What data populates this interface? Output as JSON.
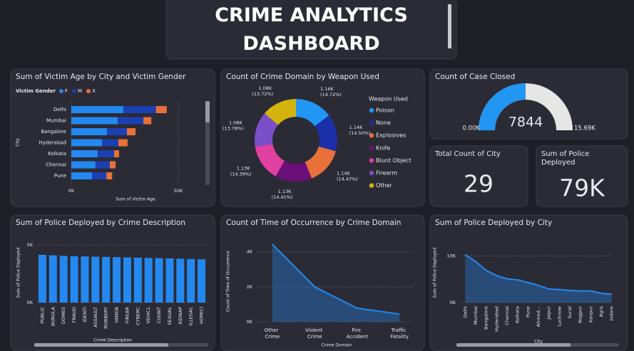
{
  "title": "CRIME ANALYTICS DASHBOARD",
  "chart_data": [
    {
      "type": "hbar_stacked",
      "title": "Sum of Victim Age by City and Victim Gender",
      "legend_title": "Victim Gender",
      "x_label": "Sum of Victim Age",
      "y_label": "City",
      "categories": [
        "Delhi",
        "Mumbai",
        "Bangalore",
        "Hyderabad",
        "Kolkata",
        "Chennai",
        "Pune"
      ],
      "series": [
        {
          "name": "F",
          "color": "#2389f0",
          "values": [
            24300,
            21700,
            16700,
            14300,
            12300,
            11300,
            9700
          ]
        },
        {
          "name": "M",
          "color": "#1c3fb2",
          "values": [
            15300,
            12000,
            9300,
            7700,
            7700,
            6700,
            6700
          ]
        },
        {
          "name": "X",
          "color": "#e8703a",
          "values": [
            5000,
            3700,
            4000,
            4300,
            2300,
            2700,
            2700
          ]
        }
      ],
      "xlim": [
        0,
        60000
      ],
      "xticks": [
        {
          "value": 0,
          "label": "0K"
        },
        {
          "value": 50000,
          "label": "50K"
        }
      ],
      "grid": true
    },
    {
      "type": "donut",
      "title": "Count of Crime Domain by Weapon Used",
      "legend_title": "Weapon Used",
      "categories": [
        "Poison",
        "None",
        "Explosives",
        "Knife",
        "Blunt Object",
        "Firearm",
        "Other"
      ],
      "values": [
        1160,
        1140,
        1140,
        1130,
        1130,
        1080,
        1080
      ],
      "value_labels": [
        "1.16K (14.72%)",
        "1.14K (14.50%)",
        "1.14K (14.47%)",
        "1.13K (14.41%)",
        "1.13K (14.39%)",
        "1.08K (13.78%)",
        "1.08K (13.72%)"
      ],
      "colors": [
        "#2196f3",
        "#1a2fa8",
        "#e8703a",
        "#6a0f7a",
        "#e040a0",
        "#7b4fc9",
        "#d4b40c"
      ]
    },
    {
      "type": "gauge",
      "title": "Count of Case Closed",
      "value": 7844,
      "min": {
        "value": 0,
        "label": "0.00K"
      },
      "max": {
        "value": 15690,
        "label": "15.69K"
      },
      "color": "#2196f3",
      "track_color": "#e6e6e6"
    },
    {
      "type": "bar",
      "title": "Sum of Police Deployed by Crime Description",
      "x_label": "Crime Description",
      "y_label": "Sum of Police Deployed",
      "categories": [
        "PUBLIC",
        "BURGLA",
        "DOMES",
        "FRAUD",
        "IDENTI",
        "ASSAULT",
        "ROBBERY",
        "VANDA",
        "FIREAR",
        "CYBERC",
        "VEHICL",
        "COUNT",
        "SEXUAL",
        "KIDNAP",
        "ILLEGAL",
        "HOMICI"
      ],
      "values": [
        4140,
        4100,
        4050,
        4020,
        4000,
        3980,
        3960,
        3940,
        3920,
        3900,
        3870,
        3850,
        3830,
        3800,
        3780,
        3750
      ],
      "color": "#2389f0",
      "ylim": [
        0,
        5000
      ],
      "yticks": [
        {
          "value": 0,
          "label": "0K"
        },
        {
          "value": 5000,
          "label": "5K"
        }
      ],
      "grid": true
    },
    {
      "type": "area",
      "title": "Count of Time of Occurrence by Crime Domain",
      "x_label": "Crime Domain",
      "y_label": "Count of Time of Occurrence",
      "categories": [
        "Other Crime",
        "Violent Crime",
        "Fire Accident",
        "Traffic Fatality"
      ],
      "values": [
        4440,
        2000,
        780,
        440
      ],
      "color": "#2389f0",
      "ylim": [
        0,
        4600
      ],
      "yticks": [
        {
          "value": 0,
          "label": "0K"
        },
        {
          "value": 2000,
          "label": "2K"
        },
        {
          "value": 4000,
          "label": "4K"
        }
      ],
      "grid": true
    },
    {
      "type": "area",
      "title": "Sum of Police Deployed by City",
      "x_label": "City",
      "y_label": "Sum of Police Deployed",
      "categories": [
        "Delhi",
        "Mumbai",
        "Bangalore",
        "Hyderabad",
        "Chennai",
        "Kolkata",
        "Pune",
        "Ahmed...",
        "Jaipur",
        "Lucknow",
        "Surat",
        "Nagpur",
        "Kanpur",
        "Agra",
        "Indore"
      ],
      "values": [
        10300,
        8800,
        6900,
        5800,
        5100,
        4900,
        4300,
        3700,
        2900,
        2800,
        2600,
        2500,
        2500,
        2000,
        1800
      ],
      "color": "#2389f0",
      "ylim": [
        0,
        11000
      ],
      "yticks": [
        {
          "value": 0,
          "label": "0K"
        },
        {
          "value": 10000,
          "label": "10K"
        }
      ],
      "grid": true
    }
  ],
  "cards": [
    {
      "title": "Total Count of City",
      "value": 29
    },
    {
      "title": "Sum of Police Deployed",
      "value": "79K"
    }
  ]
}
